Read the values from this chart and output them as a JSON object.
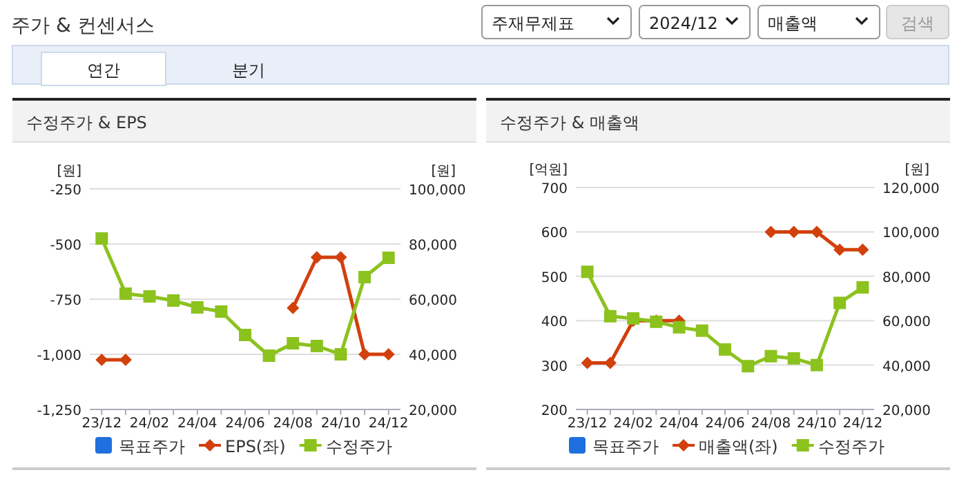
{
  "chart_data": [
    {
      "type": "other",
      "title": "주가 & 컨센서스",
      "annotations": [
        "주재무제표",
        "2024/12",
        "매출액",
        "검색",
        "연간",
        "분기"
      ]
    },
    {
      "type": "line",
      "title": "수정주가 & EPS",
      "categories": [
        "23/12",
        null,
        "24/02",
        null,
        "24/04",
        null,
        "24/06",
        null,
        "24/08",
        null,
        "24/10",
        null,
        "24/12"
      ],
      "ylabel": "[원]",
      "y2label": "[원]",
      "ylim": [
        -1250,
        -250
      ],
      "yticks": [
        {
          "value": -250,
          "label": "-250"
        },
        {
          "value": -500,
          "label": "-500"
        },
        {
          "value": -750,
          "label": "-750"
        },
        {
          "value": -1000,
          "label": "-1,000"
        },
        {
          "value": -1250,
          "label": "-1,250"
        }
      ],
      "y2lim": [
        20000,
        100000
      ],
      "y2ticks": [
        {
          "value": 20000,
          "label": "20,000"
        },
        {
          "value": 40000,
          "label": "40,000"
        },
        {
          "value": 60000,
          "label": "60,000"
        },
        {
          "value": 80000,
          "label": "80,000"
        },
        {
          "value": 100000,
          "label": "100,000"
        }
      ],
      "grid": "y",
      "legend": "bottom",
      "series": [
        {
          "name": "목표주가",
          "color": "#1f6fde",
          "axis": "y2",
          "values": [
            null,
            null,
            null,
            null,
            null,
            null,
            null,
            null,
            null,
            null,
            null,
            null,
            null
          ]
        },
        {
          "name": "EPS(좌)",
          "color": "#d2400c",
          "marker": "diamond",
          "values": [
            -1025,
            -1025,
            null,
            null,
            null,
            null,
            null,
            null,
            -790,
            -560,
            -560,
            -1000,
            -1000
          ]
        },
        {
          "name": "수정주가",
          "color": "#8cc21e",
          "axis": "y2",
          "marker": "square",
          "values": [
            82000,
            62000,
            61000,
            59500,
            57000,
            55500,
            47000,
            39500,
            44000,
            43000,
            40000,
            68000,
            75000
          ]
        }
      ]
    },
    {
      "type": "line",
      "title": "수정주가 & 매출액",
      "categories": [
        "23/12",
        null,
        "24/02",
        null,
        "24/04",
        null,
        "24/06",
        null,
        "24/08",
        null,
        "24/10",
        null,
        "24/12"
      ],
      "ylabel": "[억원]",
      "y2label": "[원]",
      "ylim": [
        200,
        700
      ],
      "yticks": [
        200,
        300,
        400,
        500,
        600,
        700
      ],
      "y2lim": [
        20000,
        120000
      ],
      "y2ticks": [
        {
          "value": 20000,
          "label": "20,000"
        },
        {
          "value": 40000,
          "label": "40,000"
        },
        {
          "value": 60000,
          "label": "60,000"
        },
        {
          "value": 80000,
          "label": "80,000"
        },
        {
          "value": 100000,
          "label": "100,000"
        },
        {
          "value": 120000,
          "label": "120,000"
        }
      ],
      "grid": "y",
      "legend": "bottom",
      "series": [
        {
          "name": "목표주가",
          "color": "#1f6fde",
          "axis": "y2",
          "values": [
            null,
            null,
            null,
            null,
            null,
            null,
            null,
            null,
            null,
            null,
            null,
            null,
            null
          ]
        },
        {
          "name": "매출액(좌)",
          "color": "#d2400c",
          "marker": "diamond",
          "values": [
            305,
            305,
            400,
            400,
            400,
            null,
            null,
            null,
            600,
            600,
            600,
            560,
            560
          ]
        },
        {
          "name": "수정주가",
          "color": "#8cc21e",
          "axis": "y2",
          "marker": "square",
          "values": [
            82000,
            62000,
            61000,
            59500,
            57000,
            55500,
            47000,
            39500,
            44000,
            43000,
            40000,
            68000,
            75000
          ]
        }
      ]
    }
  ]
}
